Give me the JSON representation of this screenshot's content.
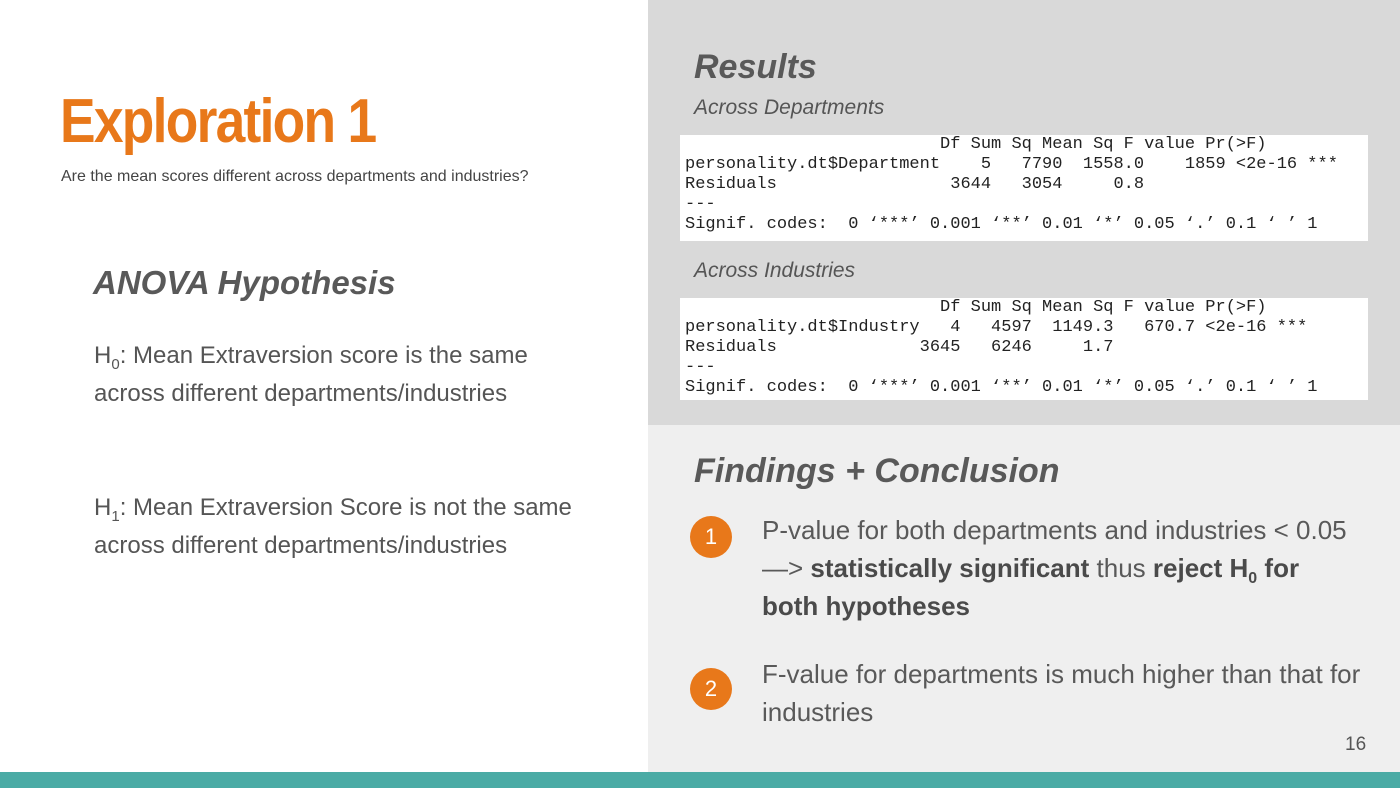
{
  "slide": {
    "title": "Exploration 1",
    "subtitle": "Are the mean scores different across departments and industries?",
    "page_number": "16"
  },
  "hypothesis": {
    "heading": "ANOVA Hypothesis",
    "h0": {
      "letter": "H",
      "sub": "0",
      "text": ": Mean Extraversion score is the same across different departments/industries"
    },
    "h1": {
      "letter": "H",
      "sub": "1",
      "text": ": Mean Extraversion Score is not the same across different departments/industries"
    }
  },
  "results": {
    "heading": "Results",
    "departments": {
      "caption": "Across Departments",
      "lines": [
        "                         Df Sum Sq Mean Sq F value Pr(>F)",
        "personality.dt$Department    5   7790  1558.0    1859 <2e-16 ***",
        "Residuals                 3644   3054     0.8",
        "---",
        "Signif. codes:  0 ‘***’ 0.001 ‘**’ 0.01 ‘*’ 0.05 ‘.’ 0.1 ‘ ’ 1"
      ]
    },
    "industries": {
      "caption": "Across Industries",
      "lines": [
        "                         Df Sum Sq Mean Sq F value Pr(>F)",
        "personality.dt$Industry   4   4597  1149.3   670.7 <2e-16 ***",
        "Residuals              3645   6246     1.7",
        "---",
        "Signif. codes:  0 ‘***’ 0.001 ‘**’ 0.01 ‘*’ 0.05 ‘.’ 0.1 ‘ ’ 1"
      ]
    }
  },
  "findings": {
    "heading": "Findings + Conclusion",
    "items": [
      {
        "number": "1",
        "text_a": "P-value for both departments and industries < 0.05 —> ",
        "bold_a": "statistically significant",
        "text_b": " thus ",
        "bold_b": "reject H",
        "bold_sub": "0",
        "bold_c": " for both hypotheses"
      },
      {
        "number": "2",
        "text": "F-value for departments is much higher than that for industries"
      }
    ]
  },
  "colors": {
    "accent": "#e8781a",
    "bar": "#4aaba5",
    "panel_top": "#d9d9d9",
    "panel_bottom": "#efefef"
  }
}
